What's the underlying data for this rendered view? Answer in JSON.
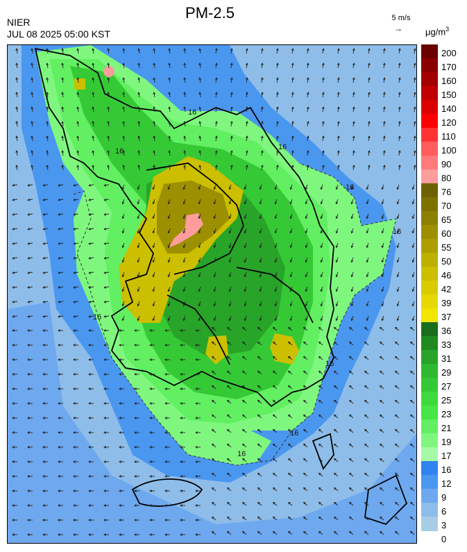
{
  "header": {
    "title": "PM-2.5",
    "agency": "NIER",
    "timestamp": "JUL 08 2025 05:00 KST"
  },
  "wind_reference": {
    "label": "5 m/s",
    "arrow": "→"
  },
  "legend": {
    "unit_base": "μg/m",
    "unit_exp": "3",
    "levels": [
      "200",
      "170",
      "160",
      "150",
      "140",
      "120",
      "110",
      "100",
      "90",
      "80",
      "76",
      "70",
      "65",
      "60",
      "55",
      "50",
      "46",
      "42",
      "39",
      "37",
      "36",
      "33",
      "31",
      "29",
      "27",
      "25",
      "23",
      "21",
      "19",
      "17",
      "16",
      "12",
      "9",
      "6",
      "3",
      "0"
    ],
    "colors": [
      "#6b0000",
      "#8a0000",
      "#a30000",
      "#c00000",
      "#dc0000",
      "#ff0000",
      "#ff3333",
      "#ff5c5c",
      "#ff7b7b",
      "#ff9d9d",
      "#6e6200",
      "#7d7200",
      "#8c8000",
      "#9c9000",
      "#ad9f00",
      "#bdb000",
      "#ccbf00",
      "#d9cc00",
      "#e6d800",
      "#f2e500",
      "#1a6e1a",
      "#1f8a1f",
      "#28a428",
      "#30b930",
      "#36c936",
      "#3dd93d",
      "#45e645",
      "#62ef62",
      "#7ff77f",
      "#a6faa6",
      "#2f84ef",
      "#4a97f0",
      "#6ea9ef",
      "#8ebde9",
      "#a7cde6"
    ]
  },
  "map": {
    "contour_labels": [
      "16",
      "16",
      "16",
      "16",
      "16",
      "16",
      "16",
      "16",
      "16"
    ],
    "concentration_class_colors": {
      "background_sea": "#8ebde9",
      "sea_low": "#6ea9ef",
      "coast_band": "#4a97f0",
      "level_16": "#7ff77f",
      "level_19": "#62ef62",
      "level_23": "#36c936",
      "level_29": "#28a428",
      "level_36": "#ccbf00",
      "level_46": "#9c9000",
      "level_80": "#ff9d9d"
    }
  }
}
